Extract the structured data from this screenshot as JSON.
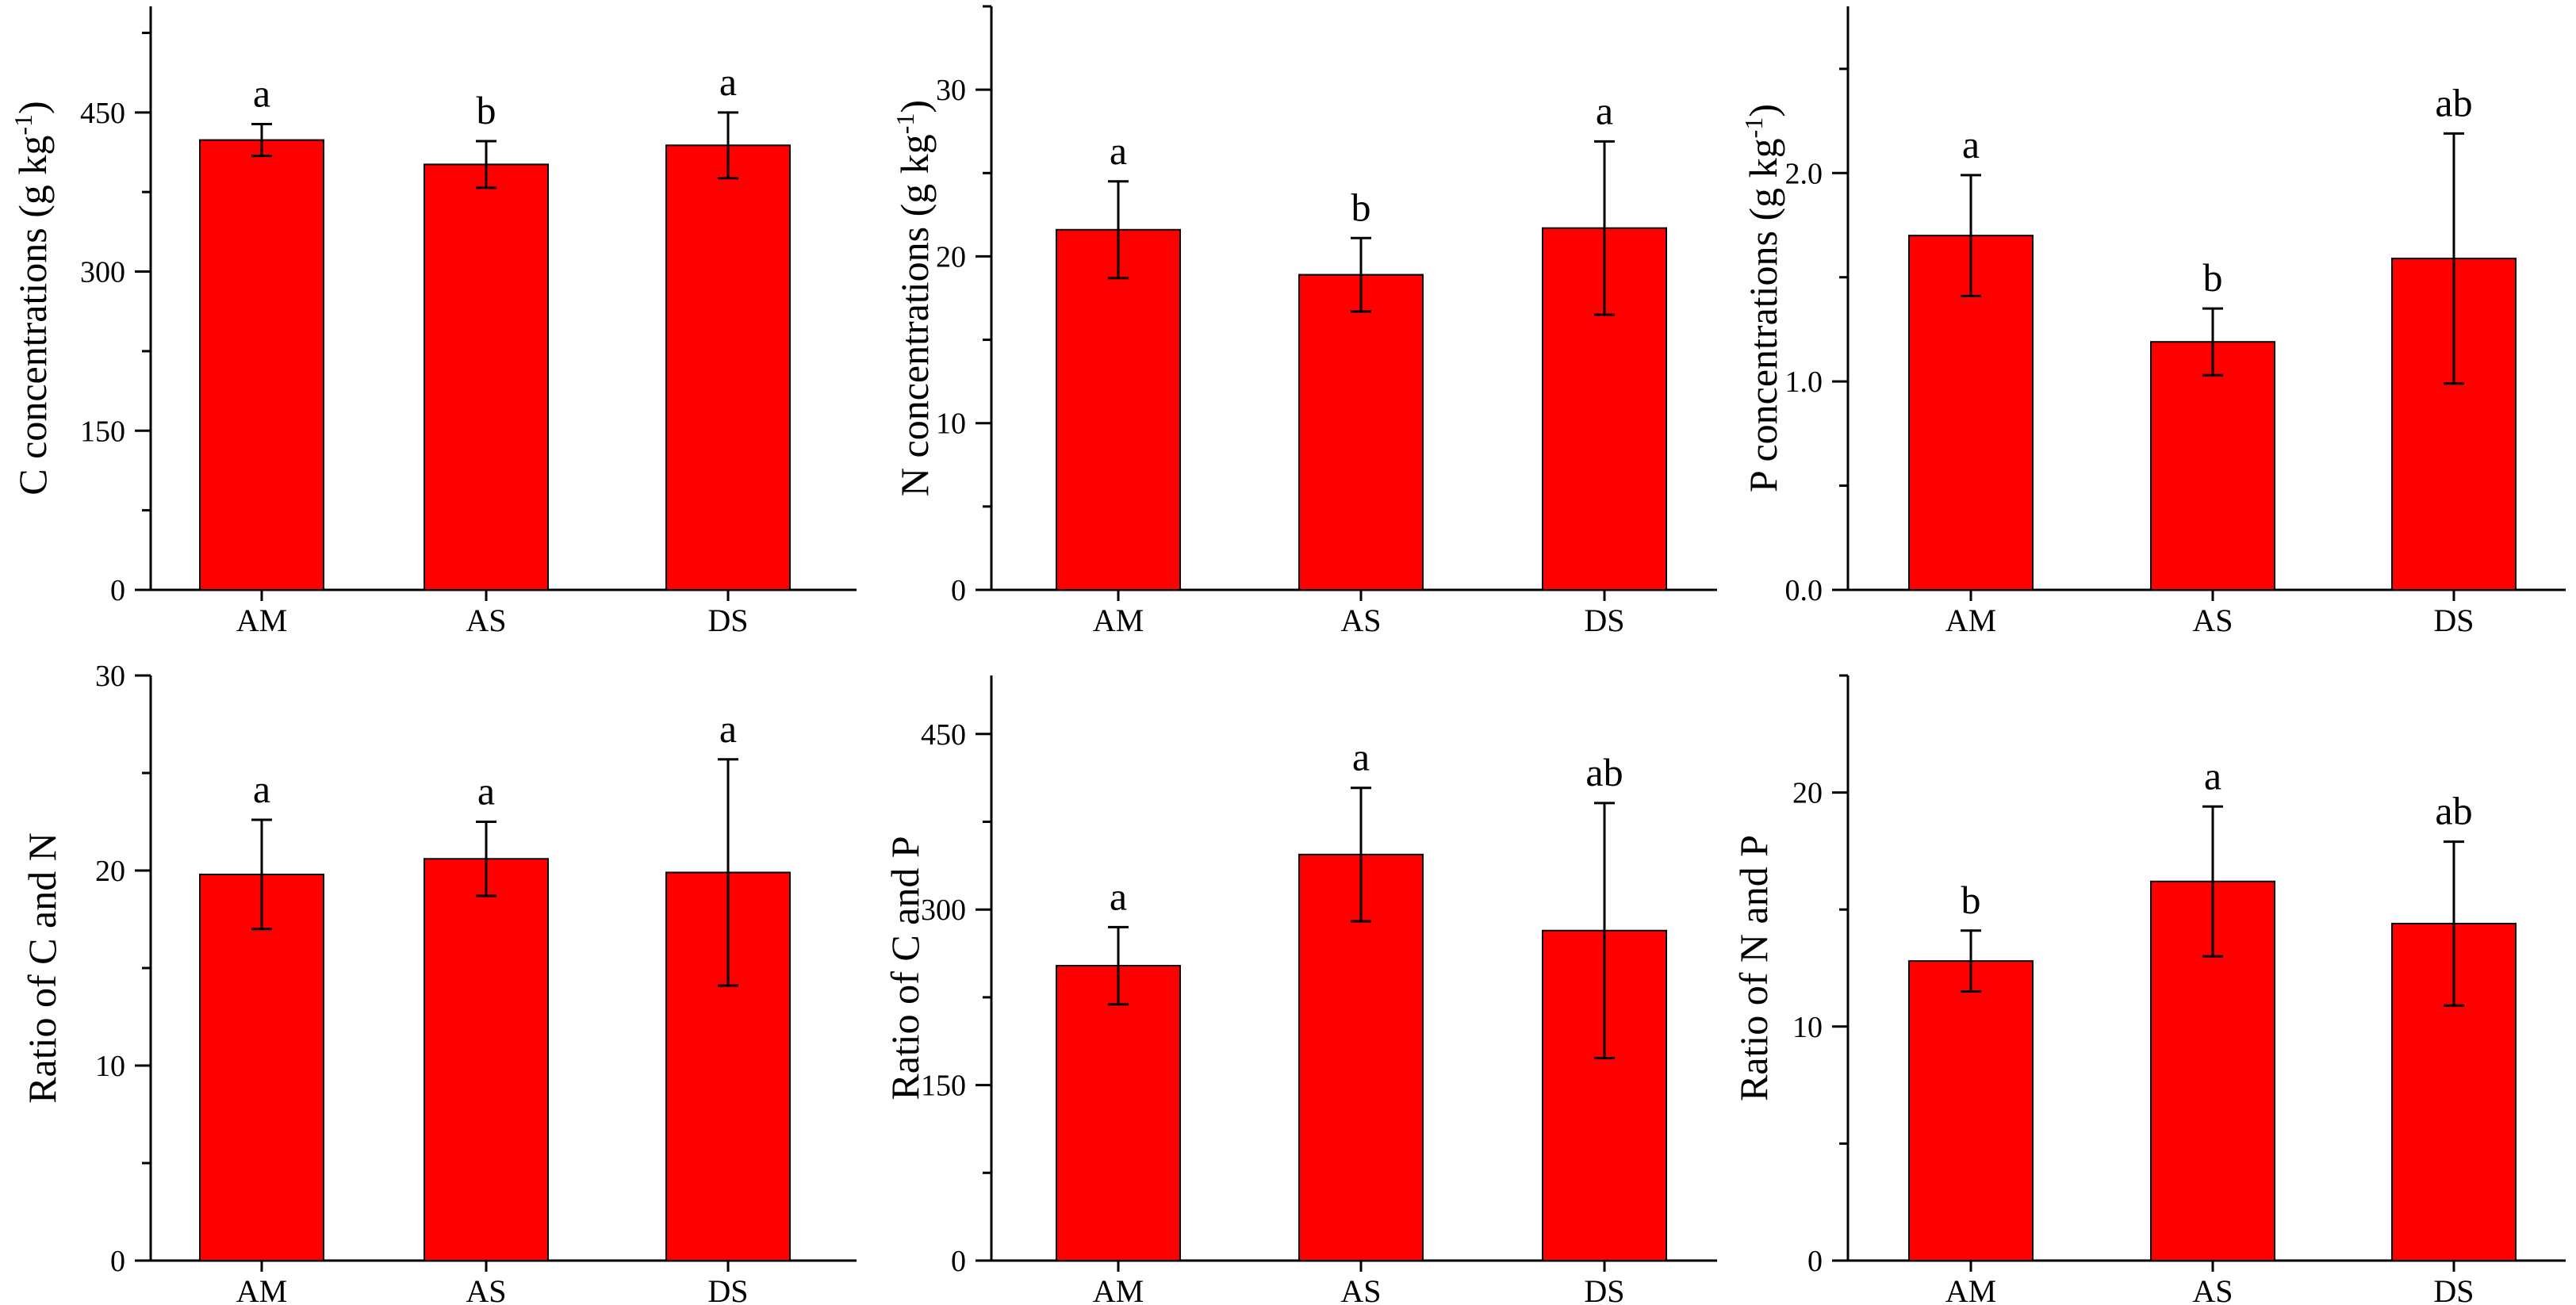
{
  "chart_data": [
    {
      "type": "bar",
      "ylabel": "C concentrations (g kg",
      "ylabel_sup": "-1",
      "ylabel_tail": ")",
      "categories": [
        "AM",
        "AS",
        "DS"
      ],
      "values": [
        424,
        401,
        419
      ],
      "errors": [
        15,
        22,
        31
      ],
      "letters": [
        "a",
        "b",
        "a"
      ],
      "ylim": [
        0,
        550
      ],
      "yticks": [
        0,
        150,
        300,
        450
      ],
      "ytick_labels": [
        "0",
        "150",
        "300",
        "450"
      ],
      "bar_color": "#ff0000"
    },
    {
      "type": "bar",
      "ylabel": "N concentrations (g kg",
      "ylabel_sup": "-1",
      "ylabel_tail": ")",
      "categories": [
        "AM",
        "AS",
        "DS"
      ],
      "values": [
        21.6,
        18.9,
        21.7
      ],
      "errors": [
        2.9,
        2.2,
        5.2
      ],
      "letters": [
        "a",
        "b",
        "a"
      ],
      "ylim": [
        0,
        35
      ],
      "yticks": [
        0,
        10,
        20,
        30
      ],
      "ytick_labels": [
        "0",
        "10",
        "20",
        "30"
      ],
      "bar_color": "#ff0000"
    },
    {
      "type": "bar",
      "ylabel": "P concentrations (g kg",
      "ylabel_sup": "-1",
      "ylabel_tail": ")",
      "categories": [
        "AM",
        "AS",
        "DS"
      ],
      "values": [
        1.7,
        1.19,
        1.59
      ],
      "errors": [
        0.29,
        0.16,
        0.6
      ],
      "letters": [
        "a",
        "b",
        "ab"
      ],
      "ylim": [
        0,
        2.8
      ],
      "yticks": [
        0,
        1,
        2
      ],
      "ytick_labels": [
        "0.0",
        "1.0",
        "2.0"
      ],
      "bar_color": "#ff0000"
    },
    {
      "type": "bar",
      "ylabel": "Ratio of C and N",
      "categories": [
        "AM",
        "AS",
        "DS"
      ],
      "values": [
        19.8,
        20.6,
        19.9
      ],
      "errors": [
        2.8,
        1.9,
        5.8
      ],
      "letters": [
        "a",
        "a",
        "a"
      ],
      "ylim": [
        0,
        30
      ],
      "yticks": [
        0,
        10,
        20,
        30
      ],
      "ytick_labels": [
        "0",
        "10",
        "20",
        "30"
      ],
      "bar_color": "#ff0000"
    },
    {
      "type": "bar",
      "ylabel": "Ratio of C and P",
      "categories": [
        "AM",
        "AS",
        "DS"
      ],
      "values": [
        252,
        347,
        282
      ],
      "errors": [
        33,
        57,
        109
      ],
      "letters": [
        "a",
        "a",
        "ab"
      ],
      "ylim": [
        0,
        500
      ],
      "yticks": [
        0,
        150,
        300,
        450
      ],
      "ytick_labels": [
        "0",
        "150",
        "300",
        "450"
      ],
      "bar_color": "#ff0000"
    },
    {
      "type": "bar",
      "ylabel": "Ratio of N and P",
      "categories": [
        "AM",
        "AS",
        "DS"
      ],
      "values": [
        12.8,
        16.2,
        14.4
      ],
      "errors": [
        1.3,
        3.2,
        3.5
      ],
      "letters": [
        "b",
        "a",
        "ab"
      ],
      "ylim": [
        0,
        25
      ],
      "yticks": [
        0,
        10,
        20
      ],
      "ytick_labels": [
        "0",
        "10",
        "20"
      ],
      "bar_color": "#ff0000"
    }
  ]
}
